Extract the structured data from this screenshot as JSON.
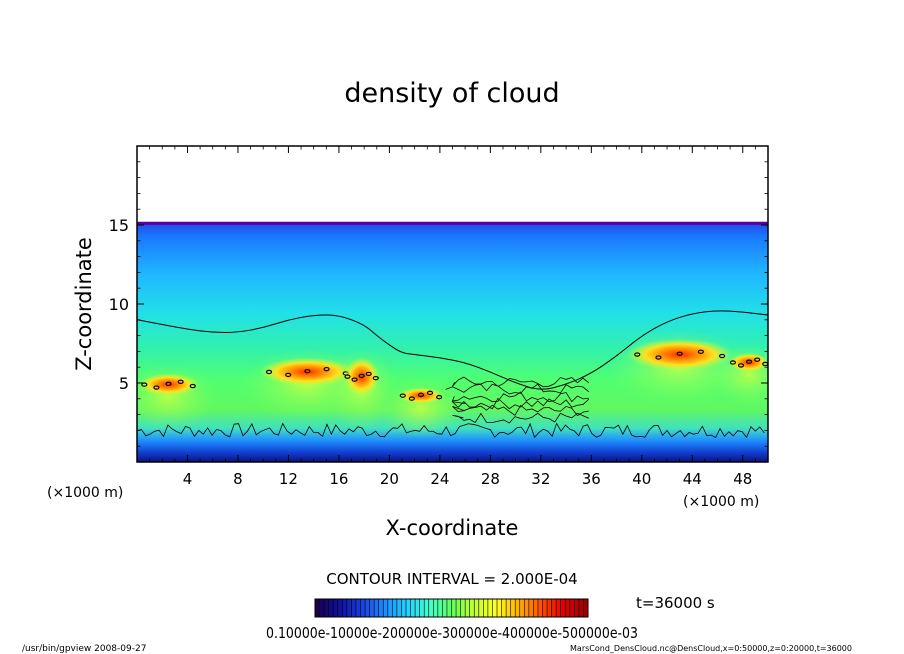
{
  "chart_data": {
    "type": "heatmap",
    "title": "density of cloud",
    "xlabel": "X-coordinate",
    "ylabel": "Z-coordinate",
    "x_unit_label": "(×1000 m)",
    "z_unit_label": "(×1000 m)",
    "xlim": [
      0,
      50
    ],
    "ylim": [
      0,
      20
    ],
    "x_ticks": [
      "4",
      "8",
      "12",
      "16",
      "20",
      "24",
      "28",
      "32",
      "36",
      "40",
      "44",
      "48"
    ],
    "y_ticks": [
      "5",
      "10",
      "15"
    ],
    "contour_interval_text": "CONTOUR INTERVAL = 2.000E-04",
    "time_label": "t=36000 s",
    "colorbar": {
      "range": [
        0,
        0.0006
      ],
      "label_text": "0.10000e-10000e-200000e-300000e-400000e-500000e-03",
      "colors": [
        "#1a0050",
        "#1010a0",
        "#1a40e0",
        "#1a8cff",
        "#20d0ff",
        "#40ffd0",
        "#60ff60",
        "#c0ff30",
        "#ffff20",
        "#ffb000",
        "#ff5000",
        "#e00000",
        "#a00000"
      ]
    },
    "cloud_top_z": 15.2,
    "contour_line_z": [
      [
        0,
        9.0
      ],
      [
        2,
        8.7
      ],
      [
        4,
        8.4
      ],
      [
        6,
        8.2
      ],
      [
        8,
        8.2
      ],
      [
        10,
        8.5
      ],
      [
        12,
        9.0
      ],
      [
        14,
        9.3
      ],
      [
        16,
        9.3
      ],
      [
        18,
        8.7
      ],
      [
        19,
        8.0
      ],
      [
        20,
        7.4
      ],
      [
        21,
        6.9
      ],
      [
        22,
        6.8
      ],
      [
        24,
        6.6
      ],
      [
        26,
        6.3
      ],
      [
        28,
        5.7
      ],
      [
        30,
        5.0
      ],
      [
        32,
        4.5
      ],
      [
        34,
        4.9
      ],
      [
        36,
        5.6
      ],
      [
        38,
        6.7
      ],
      [
        40,
        8.0
      ],
      [
        42,
        8.9
      ],
      [
        44,
        9.4
      ],
      [
        46,
        9.6
      ],
      [
        48,
        9.5
      ],
      [
        50,
        9.3
      ]
    ],
    "strong_cells": [
      {
        "x": 2.5,
        "z": 4.9,
        "rx": 2.4,
        "rz": 0.7
      },
      {
        "x": 13.5,
        "z": 5.7,
        "rx": 3.8,
        "rz": 0.9
      },
      {
        "x": 17.8,
        "z": 5.4,
        "rx": 1.4,
        "rz": 1.2
      },
      {
        "x": 22.5,
        "z": 4.2,
        "rx": 1.8,
        "rz": 0.5
      },
      {
        "x": 43.0,
        "z": 6.8,
        "rx": 4.2,
        "rz": 1.0
      },
      {
        "x": 48.5,
        "z": 6.3,
        "rx": 1.6,
        "rz": 0.6
      }
    ],
    "footer_left": "/usr/bin/gpview   2008-09-27",
    "footer_right": "MarsCond_DensCloud.nc@DensCloud,x=0:50000,z=0:20000,t=36000"
  }
}
